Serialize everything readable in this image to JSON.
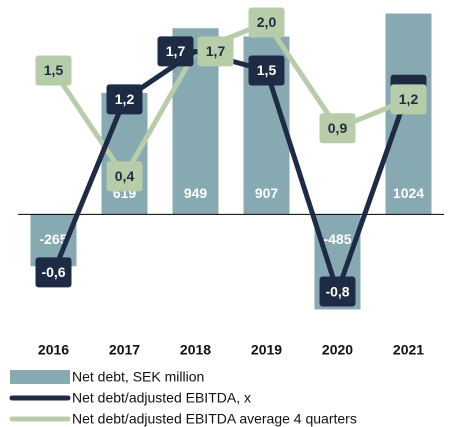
{
  "chart_data": {
    "type": "bar",
    "categories": [
      "2016",
      "2017",
      "2018",
      "2019",
      "2020",
      "2021"
    ],
    "ylim": [
      -590,
      1042
    ],
    "y2lim": [
      -1.2,
      2.13
    ],
    "series": [
      {
        "name": "Net debt, SEK million",
        "type": "bar",
        "color": "#86a9b2",
        "values": [
          -265,
          619,
          949,
          907,
          -485,
          1024
        ]
      },
      {
        "name": "Net debt/adjusted EBITDA, x",
        "type": "line",
        "axis": "y2",
        "color": "#1e2b45",
        "values": [
          -0.6,
          1.2,
          1.7,
          1.5,
          -0.8,
          1.3
        ],
        "value_labels": [
          "-0,6",
          "1,2",
          "1,7",
          "1,5",
          "-0,8",
          "1,3"
        ]
      },
      {
        "name": "Net debt/adjusted EBITDA average 4 quarters",
        "type": "line",
        "axis": "y2",
        "color": "#b7cdaa",
        "values": [
          1.5,
          0.4,
          1.7,
          2.0,
          0.9,
          1.2
        ],
        "value_labels": [
          "1,5",
          "0,4",
          "1,7",
          "2,0",
          "0,9",
          "1,2"
        ]
      }
    ]
  }
}
